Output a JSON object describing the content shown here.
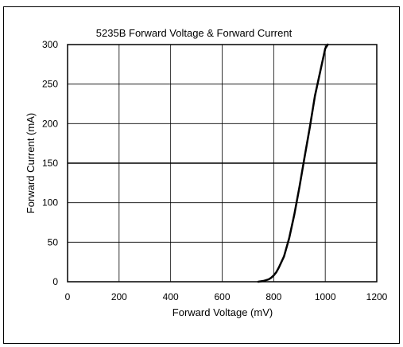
{
  "chart_data": {
    "type": "line",
    "title": "5235B Forward Voltage & Forward Current",
    "xlabel": "Forward Voltage (mV)",
    "ylabel": "Forward Current (mA)",
    "xlim": [
      0,
      1200
    ],
    "ylim": [
      0,
      300
    ],
    "xticks": [
      0,
      200,
      400,
      600,
      800,
      1000,
      1200
    ],
    "yticks": [
      0,
      50,
      100,
      150,
      200,
      250,
      300
    ],
    "xtick_labels": [
      "0",
      "200",
      "400",
      "600",
      "800",
      "1000",
      "1200"
    ],
    "ytick_labels": [
      "0",
      "50",
      "100",
      "150",
      "200",
      "250",
      "300"
    ],
    "grid": true,
    "legend": "none",
    "line_color": "#000000",
    "series": [
      {
        "x": [
          740,
          760,
          780,
          790,
          800,
          810,
          820,
          840,
          860,
          880,
          900,
          920,
          940,
          960,
          980,
          1000,
          1010
        ],
        "y": [
          0,
          1,
          3,
          5,
          8,
          12,
          18,
          32,
          55,
          85,
          120,
          158,
          195,
          235,
          265,
          295,
          300
        ]
      }
    ]
  }
}
